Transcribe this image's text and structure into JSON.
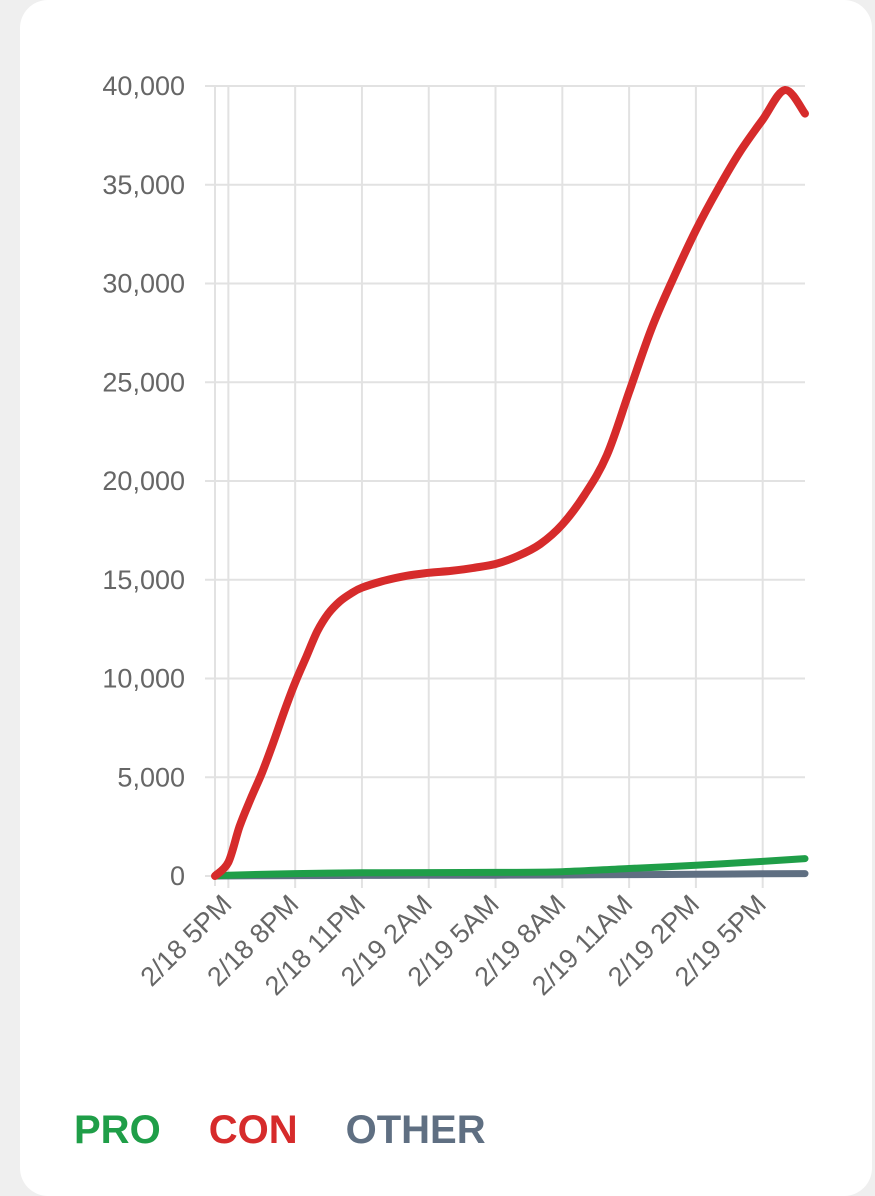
{
  "chart_data": {
    "type": "line",
    "title": "",
    "xlabel": "",
    "ylabel": "",
    "ylim": [
      0,
      40000
    ],
    "y_ticks": [
      {
        "value": 0,
        "label": "0"
      },
      {
        "value": 5000,
        "label": "5,000"
      },
      {
        "value": 10000,
        "label": "10,000"
      },
      {
        "value": 15000,
        "label": "15,000"
      },
      {
        "value": 20000,
        "label": "20,000"
      },
      {
        "value": 25000,
        "label": "25,000"
      },
      {
        "value": 30000,
        "label": "30,000"
      },
      {
        "value": 35000,
        "label": "35,000"
      },
      {
        "value": 40000,
        "label": "40,000"
      }
    ],
    "x_range_hours": [
      -0.6,
      25.9
    ],
    "x_ticks": [
      {
        "hours": 0,
        "label": "2/18 5PM"
      },
      {
        "hours": 3,
        "label": "2/18 8PM"
      },
      {
        "hours": 6,
        "label": "2/18 11PM"
      },
      {
        "hours": 9,
        "label": "2/19 2AM"
      },
      {
        "hours": 12,
        "label": "2/19 5AM"
      },
      {
        "hours": 15,
        "label": "2/19 8AM"
      },
      {
        "hours": 18,
        "label": "2/19 11AM"
      },
      {
        "hours": 21,
        "label": "2/19 2PM"
      },
      {
        "hours": 24,
        "label": "2/19 5PM"
      }
    ],
    "grid": true,
    "legend_position": "bottom-left",
    "series": [
      {
        "name": "PRO",
        "color": "#1f9e48",
        "points": [
          [
            -0.6,
            0
          ],
          [
            0,
            40
          ],
          [
            3,
            120
          ],
          [
            6,
            160
          ],
          [
            9,
            170
          ],
          [
            12,
            180
          ],
          [
            15,
            220
          ],
          [
            18,
            380
          ],
          [
            21,
            540
          ],
          [
            24,
            740
          ],
          [
            25.9,
            880
          ]
        ]
      },
      {
        "name": "CON",
        "color": "#d62b2b",
        "points": [
          [
            -0.6,
            0
          ],
          [
            0,
            700
          ],
          [
            0.5,
            2500
          ],
          [
            1,
            3900
          ],
          [
            1.5,
            5200
          ],
          [
            2,
            6700
          ],
          [
            2.5,
            8300
          ],
          [
            3,
            9800
          ],
          [
            3.5,
            11100
          ],
          [
            4,
            12400
          ],
          [
            4.5,
            13300
          ],
          [
            5,
            13900
          ],
          [
            5.5,
            14300
          ],
          [
            6,
            14600
          ],
          [
            7,
            14950
          ],
          [
            8,
            15200
          ],
          [
            9,
            15350
          ],
          [
            10,
            15450
          ],
          [
            11,
            15600
          ],
          [
            12,
            15800
          ],
          [
            13,
            16200
          ],
          [
            14,
            16800
          ],
          [
            15,
            17800
          ],
          [
            16,
            19300
          ],
          [
            17,
            21300
          ],
          [
            18,
            24500
          ],
          [
            19,
            27700
          ],
          [
            20,
            30300
          ],
          [
            21,
            32700
          ],
          [
            22,
            34800
          ],
          [
            23,
            36700
          ],
          [
            24,
            38300
          ],
          [
            25,
            39800
          ],
          [
            25.9,
            38600
          ]
        ]
      },
      {
        "name": "OTHER",
        "color": "#5f6f82",
        "points": [
          [
            -0.6,
            0
          ],
          [
            3,
            20
          ],
          [
            6,
            30
          ],
          [
            9,
            35
          ],
          [
            12,
            40
          ],
          [
            15,
            50
          ],
          [
            18,
            70
          ],
          [
            21,
            90
          ],
          [
            24,
            110
          ],
          [
            25.9,
            120
          ]
        ]
      }
    ]
  },
  "legend": {
    "pro_label": "PRO",
    "con_label": "CON",
    "other_label": "OTHER",
    "pro_color": "#1f9e48",
    "con_color": "#d62b2b",
    "other_color": "#5f6f82"
  }
}
